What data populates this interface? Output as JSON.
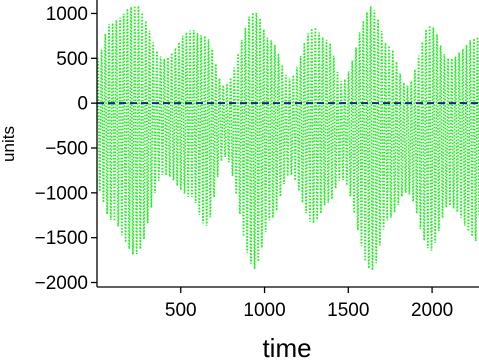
{
  "chart_data": {
    "type": "line",
    "title": "",
    "xlabel": "time",
    "ylabel": "units",
    "xlim": [
      0,
      2280
    ],
    "ylim": [
      -2050,
      1150
    ],
    "xticks": [
      500,
      1000,
      1500,
      2000
    ],
    "xtick_labels": [
      "500",
      "1000",
      "1500",
      "2000"
    ],
    "yticks": [
      1000,
      500,
      0,
      -500,
      -1000,
      -1500,
      -2000
    ],
    "ytick_labels": [
      "1000",
      "500",
      "0",
      "−500",
      "−1000",
      "−1500",
      "−2000"
    ],
    "grid": false,
    "legend": "none",
    "series": [
      {
        "style": "dotted",
        "color": "#22ee22",
        "oscillation_period": 22,
        "envelope": {
          "x": [
            0,
            80,
            230,
            400,
            560,
            650,
            760,
            940,
            1040,
            1150,
            1290,
            1380,
            1460,
            1640,
            1740,
            1850,
            1990,
            2100,
            2280
          ],
          "upper": [
            500,
            900,
            1100,
            500,
            820,
            750,
            200,
            1030,
            700,
            280,
            850,
            700,
            250,
            1080,
            650,
            200,
            880,
            500,
            750
          ],
          "lower": [
            -950,
            -1300,
            -1700,
            -800,
            -1050,
            -1380,
            -600,
            -1850,
            -1300,
            -800,
            -1350,
            -1120,
            -850,
            -1880,
            -1300,
            -1000,
            -1650,
            -1150,
            -1550
          ]
        }
      },
      {
        "style": "dashed",
        "color": "#1a237e",
        "x": [
          0,
          2280
        ],
        "y": [
          0,
          0
        ]
      }
    ]
  }
}
